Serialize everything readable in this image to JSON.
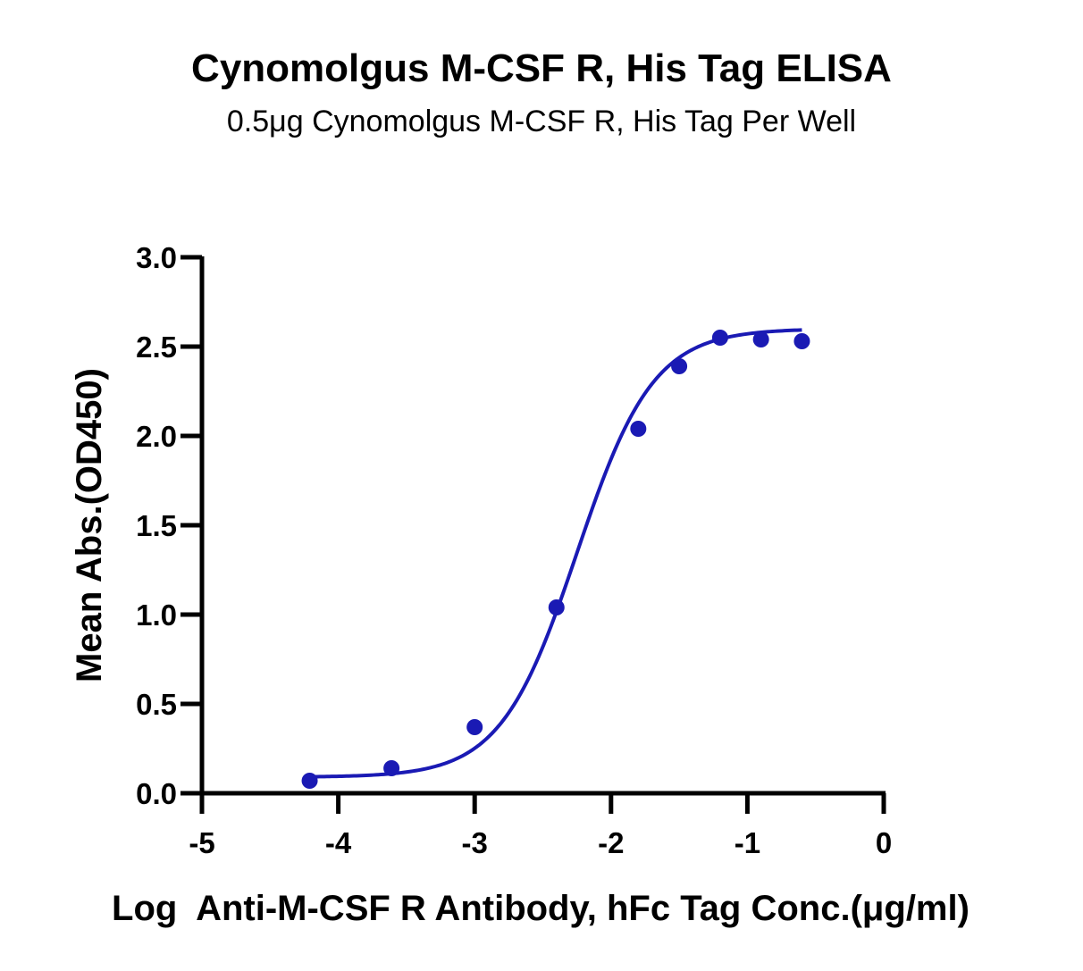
{
  "chart_data": {
    "type": "scatter",
    "title": "Cynomolgus M-CSF R, His Tag ELISA",
    "subtitle": "0.5μg Cynomolgus M-CSF R, His Tag Per Well",
    "xlabel": "Log  Anti-M-CSF R Antibody, hFc Tag Conc.(μg/ml)",
    "ylabel": "Mean Abs.(OD450)",
    "xlim": [
      -5,
      0
    ],
    "ylim": [
      0,
      3.0
    ],
    "x_ticks": [
      "-5",
      "-4",
      "-3",
      "-2",
      "-1",
      "0"
    ],
    "y_ticks": [
      "0.0",
      "0.5",
      "1.0",
      "1.5",
      "2.0",
      "2.5",
      "3.0"
    ],
    "grid": false,
    "color": "#1a1ab4",
    "series": [
      {
        "x": [
          -4.21,
          -3.61,
          -3.0,
          -2.4,
          -1.8,
          -1.5,
          -1.2,
          -0.9,
          -0.6
        ],
        "y": [
          0.07,
          0.14,
          0.37,
          1.04,
          2.04,
          2.39,
          2.55,
          2.54,
          2.53
        ],
        "fit": "4PL"
      }
    ]
  }
}
